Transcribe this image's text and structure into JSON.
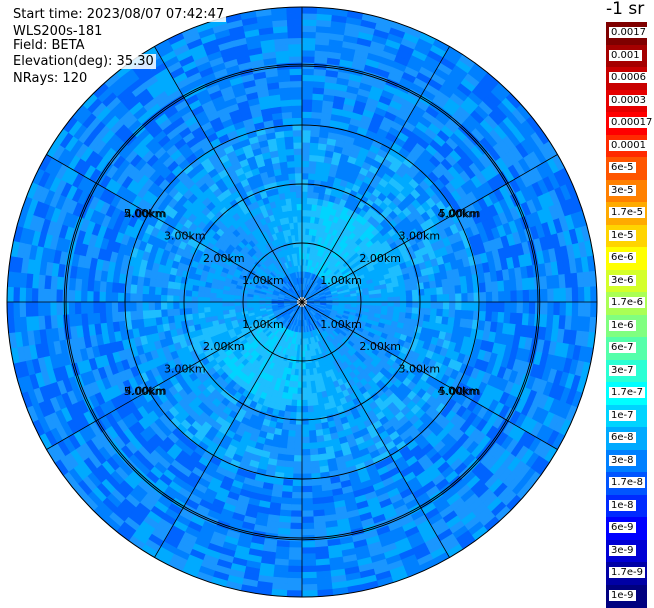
{
  "info": {
    "start_time": "Start time: 2023/08/07 07:42:47",
    "instrument": "WLS200s-181",
    "field": "Field: BETA",
    "elevation": "Elevation(deg): 35.30",
    "nrays": "NRays: 120"
  },
  "colorbar": {
    "title": "-1 sr",
    "labels": [
      "0.0017",
      "0.001",
      "0.0006",
      "0.0003",
      "0.00017",
      "0.0001",
      "6e-5",
      "3e-5",
      "1.7e-5",
      "1e-5",
      "6e-6",
      "3e-6",
      "1.7e-6",
      "1e-6",
      "6e-7",
      "3e-7",
      "1.7e-7",
      "1e-7",
      "6e-8",
      "3e-8",
      "1.7e-8",
      "1e-8",
      "6e-9",
      "3e-9",
      "1.7e-9",
      "1e-9"
    ],
    "colors": [
      "#7f0000",
      "#a50000",
      "#c80000",
      "#e60000",
      "#ff0000",
      "#ff2a00",
      "#ff5500",
      "#ff8000",
      "#ffaa00",
      "#ffd400",
      "#ffff00",
      "#d4ff2a",
      "#aaff55",
      "#80ff80",
      "#55ffaa",
      "#2affd4",
      "#00ffff",
      "#00d4ff",
      "#00aaff",
      "#0080ff",
      "#0055ff",
      "#002aff",
      "#0000ff",
      "#0000d4",
      "#0000a5",
      "#00007f"
    ]
  },
  "chart_data": {
    "type": "heatmap",
    "projection": "polar",
    "quantity": "BETA",
    "units": "-1 sr",
    "rays": 120,
    "range_rings_km": [
      1,
      2,
      3,
      4,
      5
    ],
    "range_labels": [
      "1.00km",
      "2.00km",
      "3.00km",
      "4.00km",
      "5.00km"
    ],
    "max_range_km": 5.0,
    "radial_lines_deg": [
      0,
      30,
      60,
      90,
      120,
      150,
      180,
      210,
      240,
      270,
      300,
      330
    ],
    "dominant_value_range": [
      "3e-8",
      "1e-7"
    ],
    "near_center_value": "1.7e-8"
  }
}
